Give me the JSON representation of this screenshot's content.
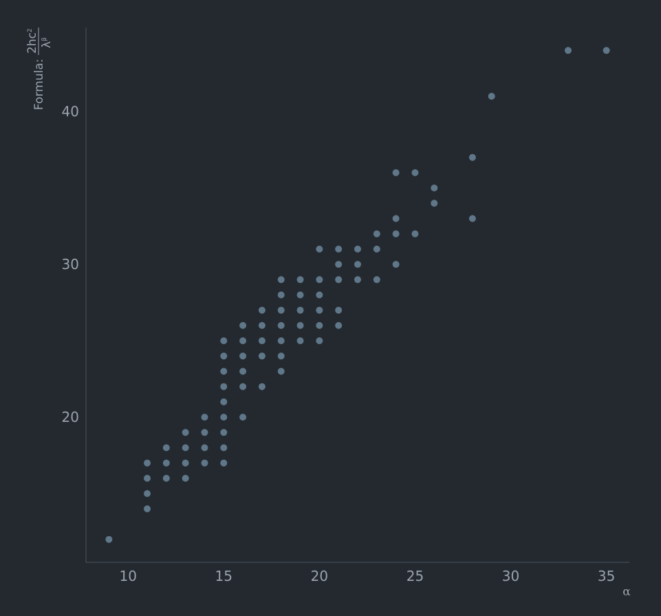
{
  "chart_data": {
    "type": "scatter",
    "xlabel": "α",
    "ylabel": {
      "prefix": "Formula:",
      "numerator": "2hc",
      "numerator_sup": "2",
      "denominator": "λ",
      "denominator_sup": "β"
    },
    "xlim": [
      7.8,
      36.2
    ],
    "ylim": [
      10.5,
      45.5
    ],
    "xticks": [
      10,
      15,
      20,
      25,
      30,
      35
    ],
    "yticks": [
      20,
      30,
      40
    ],
    "grid": false,
    "colors": {
      "point": "#5f7788",
      "background": "#242930",
      "axis": "#4a525c",
      "text": "#9aa3ad"
    },
    "points": [
      [
        9,
        12
      ],
      [
        11,
        14
      ],
      [
        11,
        15
      ],
      [
        11,
        16
      ],
      [
        11,
        17
      ],
      [
        12,
        16
      ],
      [
        12,
        17
      ],
      [
        12,
        18
      ],
      [
        13,
        16
      ],
      [
        13,
        17
      ],
      [
        13,
        18
      ],
      [
        13,
        19
      ],
      [
        14,
        17
      ],
      [
        14,
        18
      ],
      [
        14,
        19
      ],
      [
        14,
        20
      ],
      [
        15,
        17
      ],
      [
        15,
        18
      ],
      [
        15,
        19
      ],
      [
        15,
        20
      ],
      [
        15,
        21
      ],
      [
        15,
        22
      ],
      [
        15,
        23
      ],
      [
        15,
        24
      ],
      [
        15,
        25
      ],
      [
        16,
        20
      ],
      [
        16,
        22
      ],
      [
        16,
        23
      ],
      [
        16,
        24
      ],
      [
        16,
        25
      ],
      [
        16,
        26
      ],
      [
        17,
        22
      ],
      [
        17,
        24
      ],
      [
        17,
        25
      ],
      [
        17,
        26
      ],
      [
        17,
        27
      ],
      [
        18,
        23
      ],
      [
        18,
        24
      ],
      [
        18,
        25
      ],
      [
        18,
        26
      ],
      [
        18,
        27
      ],
      [
        18,
        28
      ],
      [
        18,
        29
      ],
      [
        19,
        25
      ],
      [
        19,
        26
      ],
      [
        19,
        27
      ],
      [
        19,
        28
      ],
      [
        19,
        29
      ],
      [
        20,
        25
      ],
      [
        20,
        26
      ],
      [
        20,
        27
      ],
      [
        20,
        28
      ],
      [
        20,
        29
      ],
      [
        20,
        31
      ],
      [
        21,
        26
      ],
      [
        21,
        27
      ],
      [
        21,
        29
      ],
      [
        21,
        30
      ],
      [
        21,
        31
      ],
      [
        22,
        29
      ],
      [
        22,
        30
      ],
      [
        22,
        31
      ],
      [
        23,
        29
      ],
      [
        23,
        31
      ],
      [
        23,
        32
      ],
      [
        24,
        30
      ],
      [
        24,
        32
      ],
      [
        24,
        33
      ],
      [
        24,
        36
      ],
      [
        25,
        32
      ],
      [
        25,
        36
      ],
      [
        26,
        34
      ],
      [
        26,
        35
      ],
      [
        28,
        33
      ],
      [
        28,
        37
      ],
      [
        29,
        41
      ],
      [
        33,
        44
      ],
      [
        35,
        44
      ]
    ]
  }
}
